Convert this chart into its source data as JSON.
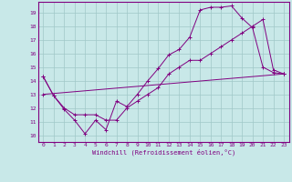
{
  "title": "",
  "xlabel": "Windchill (Refroidissement éolien,°C)",
  "bg_color": "#c8e8e8",
  "grid_color": "#a0c8c8",
  "line_color": "#800080",
  "xlim": [
    -0.5,
    23.5
  ],
  "ylim": [
    9.5,
    19.8
  ],
  "yticks": [
    10,
    11,
    12,
    13,
    14,
    15,
    16,
    17,
    18,
    19
  ],
  "xticks": [
    0,
    1,
    2,
    3,
    4,
    5,
    6,
    7,
    8,
    9,
    10,
    11,
    12,
    13,
    14,
    15,
    16,
    17,
    18,
    19,
    20,
    21,
    22,
    23
  ],
  "series1_x": [
    0,
    1,
    2,
    3,
    4,
    5,
    6,
    7,
    8,
    9,
    10,
    11,
    12,
    13,
    14,
    15,
    16,
    17,
    18,
    19,
    20,
    21,
    22,
    23
  ],
  "series1_y": [
    14.3,
    12.9,
    11.9,
    11.1,
    10.1,
    11.1,
    10.4,
    12.5,
    12.1,
    13.0,
    14.0,
    14.9,
    15.9,
    16.3,
    17.2,
    19.2,
    19.4,
    19.4,
    19.5,
    18.6,
    17.9,
    15.0,
    14.6,
    14.5
  ],
  "series2_x": [
    0,
    1,
    2,
    3,
    4,
    5,
    6,
    7,
    8,
    9,
    10,
    11,
    12,
    13,
    14,
    15,
    16,
    17,
    18,
    19,
    20,
    21,
    22,
    23
  ],
  "series2_y": [
    14.3,
    12.9,
    12.0,
    11.5,
    11.5,
    11.5,
    11.1,
    11.1,
    12.0,
    12.5,
    13.0,
    13.5,
    14.5,
    15.0,
    15.5,
    15.5,
    16.0,
    16.5,
    17.0,
    17.5,
    18.0,
    18.5,
    14.8,
    14.5
  ],
  "series3_x": [
    0,
    23
  ],
  "series3_y": [
    13.0,
    14.5
  ]
}
